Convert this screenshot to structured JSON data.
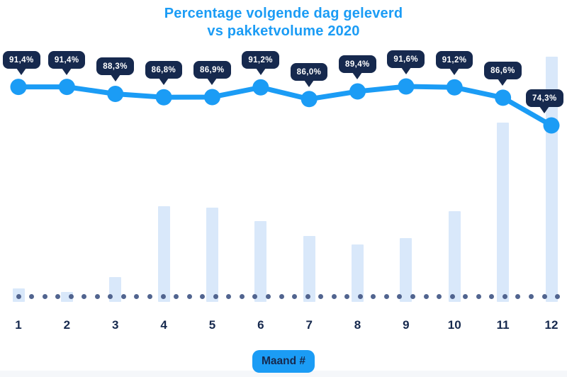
{
  "title": {
    "line1": "Percentage volgende dag geleverd",
    "line2": "vs pakketvolume 2020"
  },
  "chart_data": {
    "type": "combo (line + bar)",
    "title": "Percentage volgende dag geleverd vs pakketvolume 2020",
    "xlabel": "Maand #",
    "categories": [
      "1",
      "2",
      "3",
      "4",
      "5",
      "6",
      "7",
      "8",
      "9",
      "10",
      "11",
      "12"
    ],
    "legend": "none",
    "grid": "dotted baseline only",
    "series": [
      {
        "name": "Percentage volgende dag geleverd",
        "type": "line",
        "unit": "%",
        "values": [
          91.4,
          91.4,
          88.3,
          86.8,
          86.9,
          91.2,
          86.0,
          89.4,
          91.6,
          91.2,
          86.6,
          74.3
        ],
        "point_labels": [
          "91,4%",
          "91,4%",
          "88,3%",
          "86,8%",
          "86,9%",
          "91,2%",
          "86,0%",
          "89,4%",
          "91,6%",
          "91,2%",
          "86,6%",
          "74,3%"
        ]
      },
      {
        "name": "Pakketvolume 2020",
        "type": "bar",
        "unit": "relative volume, estimated from bar heights (december = 100)",
        "values": [
          5.5,
          4,
          10,
          39,
          38.5,
          33,
          27,
          23.5,
          26,
          37,
          73,
          100
        ]
      }
    ]
  },
  "colors": {
    "accent_blue": "#1b9cf5",
    "navy": "#16294e",
    "bar_fill": "#d9e8fa",
    "dot": "#51648f",
    "badge_text": "#ffffff",
    "background": "#ffffff",
    "bottom_strip": "#f5f7fa"
  }
}
